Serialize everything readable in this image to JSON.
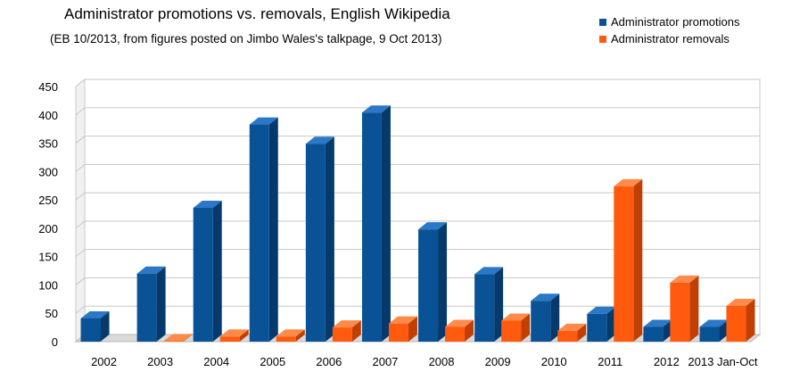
{
  "chart_data": {
    "type": "bar",
    "title": "Administrator promotions vs. removals, English Wikipedia",
    "subtitle": "(EB 10/2013, from figures posted on Jimbo Wales's talkpage, 9 Oct 2013)",
    "xlabel": "",
    "ylabel": "",
    "ylim": [
      0,
      450
    ],
    "yticks": [
      0,
      50,
      100,
      150,
      200,
      250,
      300,
      350,
      400,
      450
    ],
    "grid": true,
    "legend_position": "top-right",
    "categories": [
      "2002",
      "2003",
      "2004",
      "2005",
      "2006",
      "2007",
      "2008",
      "2009",
      "2010",
      "2011",
      "2012",
      "2013 Jan-Oct"
    ],
    "series": [
      {
        "name": "Administrator promotions",
        "color": "#0a5296",
        "values": [
          41,
          120,
          236,
          383,
          349,
          404,
          198,
          119,
          72,
          49,
          26,
          26
        ]
      },
      {
        "name": "Administrator removals",
        "color": "#ff5a0e",
        "values": [
          0,
          1,
          9,
          9,
          25,
          32,
          26,
          37,
          19,
          274,
          104,
          63
        ]
      }
    ]
  }
}
